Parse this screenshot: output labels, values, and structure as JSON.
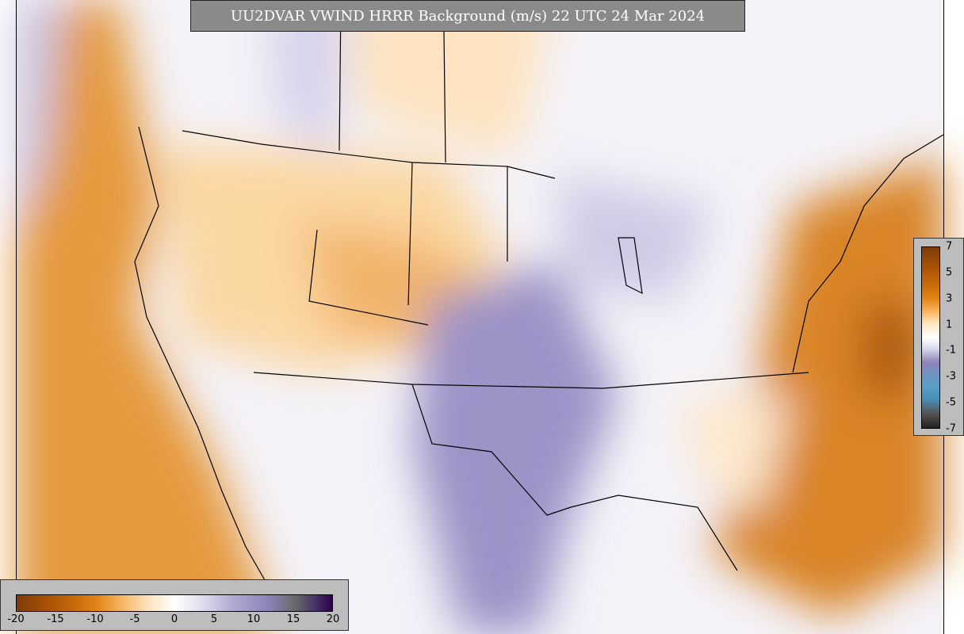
{
  "title": "UU2DVAR VWIND HRRR Background (m/s) 22 UTC 24 Mar 2024",
  "bottom_colorbar": {
    "ticks": [
      -20,
      -15,
      -10,
      -5,
      0,
      5,
      10,
      15,
      20
    ]
  },
  "right_colorbar": {
    "ticks": [
      7,
      5,
      3,
      1,
      -1,
      -3,
      -5,
      -7
    ]
  }
}
